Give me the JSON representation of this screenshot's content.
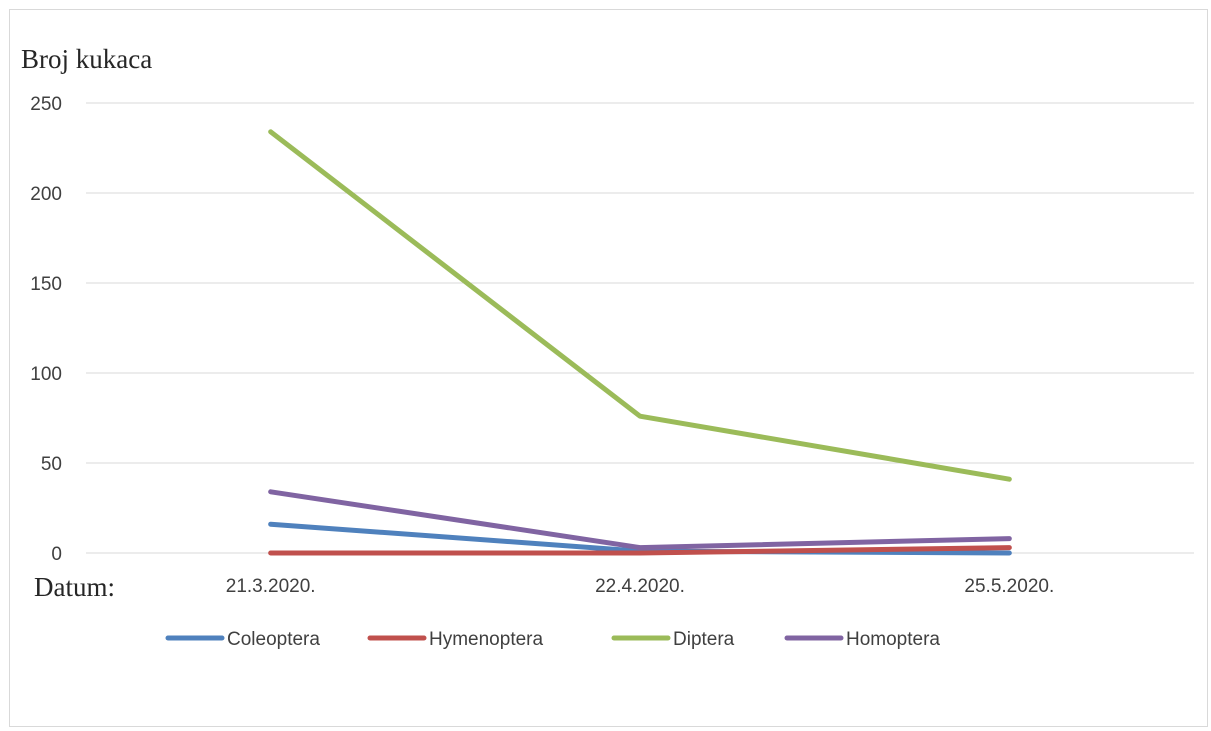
{
  "chart_data": {
    "type": "line",
    "title": "",
    "ylabel": "Broj kukaca",
    "xlabel": "Datum:",
    "categories": [
      "21.3.2020.",
      "22.4.2020.",
      "25.5.2020."
    ],
    "ylim": [
      0,
      250
    ],
    "yticks": [
      "0",
      "50",
      "100",
      "150",
      "200",
      "250"
    ],
    "grid": true,
    "legend_position": "bottom",
    "series": [
      {
        "name": "Coleoptera",
        "color": "#4f81bd",
        "values": [
          16,
          1,
          0
        ]
      },
      {
        "name": "Hymenoptera",
        "color": "#c0504d",
        "values": [
          0,
          0,
          3
        ]
      },
      {
        "name": "Diptera",
        "color": "#9bbb59",
        "values": [
          234,
          76,
          41
        ]
      },
      {
        "name": "Homoptera",
        "color": "#8064a2",
        "values": [
          34,
          3,
          8
        ]
      }
    ]
  }
}
